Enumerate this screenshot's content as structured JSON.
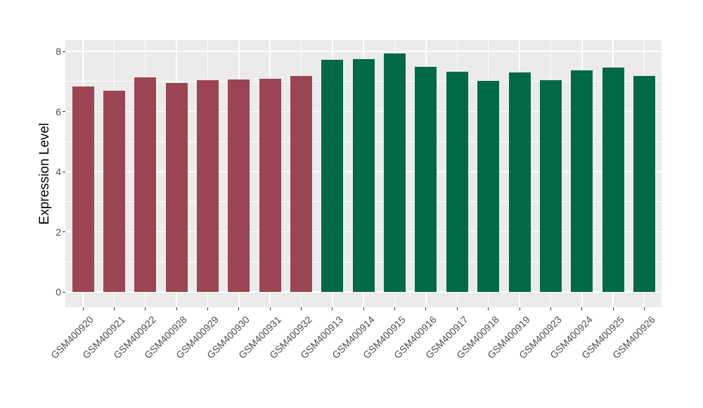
{
  "chart_data": {
    "type": "bar",
    "title": "",
    "xlabel": "",
    "ylabel": "Expression Level",
    "ylim": [
      0,
      8.4
    ],
    "yticks": [
      0,
      2,
      4,
      6,
      8
    ],
    "minor_yticks": [
      1,
      3,
      5,
      7
    ],
    "grid": true,
    "legend": "none",
    "panel_bg": "#EBEBEB",
    "grid_color": "#FFFFFF",
    "axis_text_color": "#4d4d4d",
    "categories": [
      "GSM400920",
      "GSM400921",
      "GSM400922",
      "GSM400928",
      "GSM400929",
      "GSM400930",
      "GSM400931",
      "GSM400932",
      "GSM400913",
      "GSM400914",
      "GSM400915",
      "GSM400916",
      "GSM400917",
      "GSM400918",
      "GSM400919",
      "GSM400923",
      "GSM400924",
      "GSM400925",
      "GSM400926"
    ],
    "values": [
      6.82,
      6.68,
      7.14,
      6.95,
      7.03,
      7.07,
      7.09,
      7.19,
      7.71,
      7.74,
      7.93,
      7.48,
      7.31,
      7.01,
      7.3,
      7.03,
      7.37,
      7.47,
      7.17
    ],
    "bar_colors": [
      "#9B4452",
      "#9B4452",
      "#9B4452",
      "#9B4452",
      "#9B4452",
      "#9B4452",
      "#9B4452",
      "#9B4452",
      "#006948",
      "#006948",
      "#006948",
      "#006948",
      "#006948",
      "#006948",
      "#006948",
      "#006948",
      "#006948",
      "#006948",
      "#006948"
    ]
  }
}
